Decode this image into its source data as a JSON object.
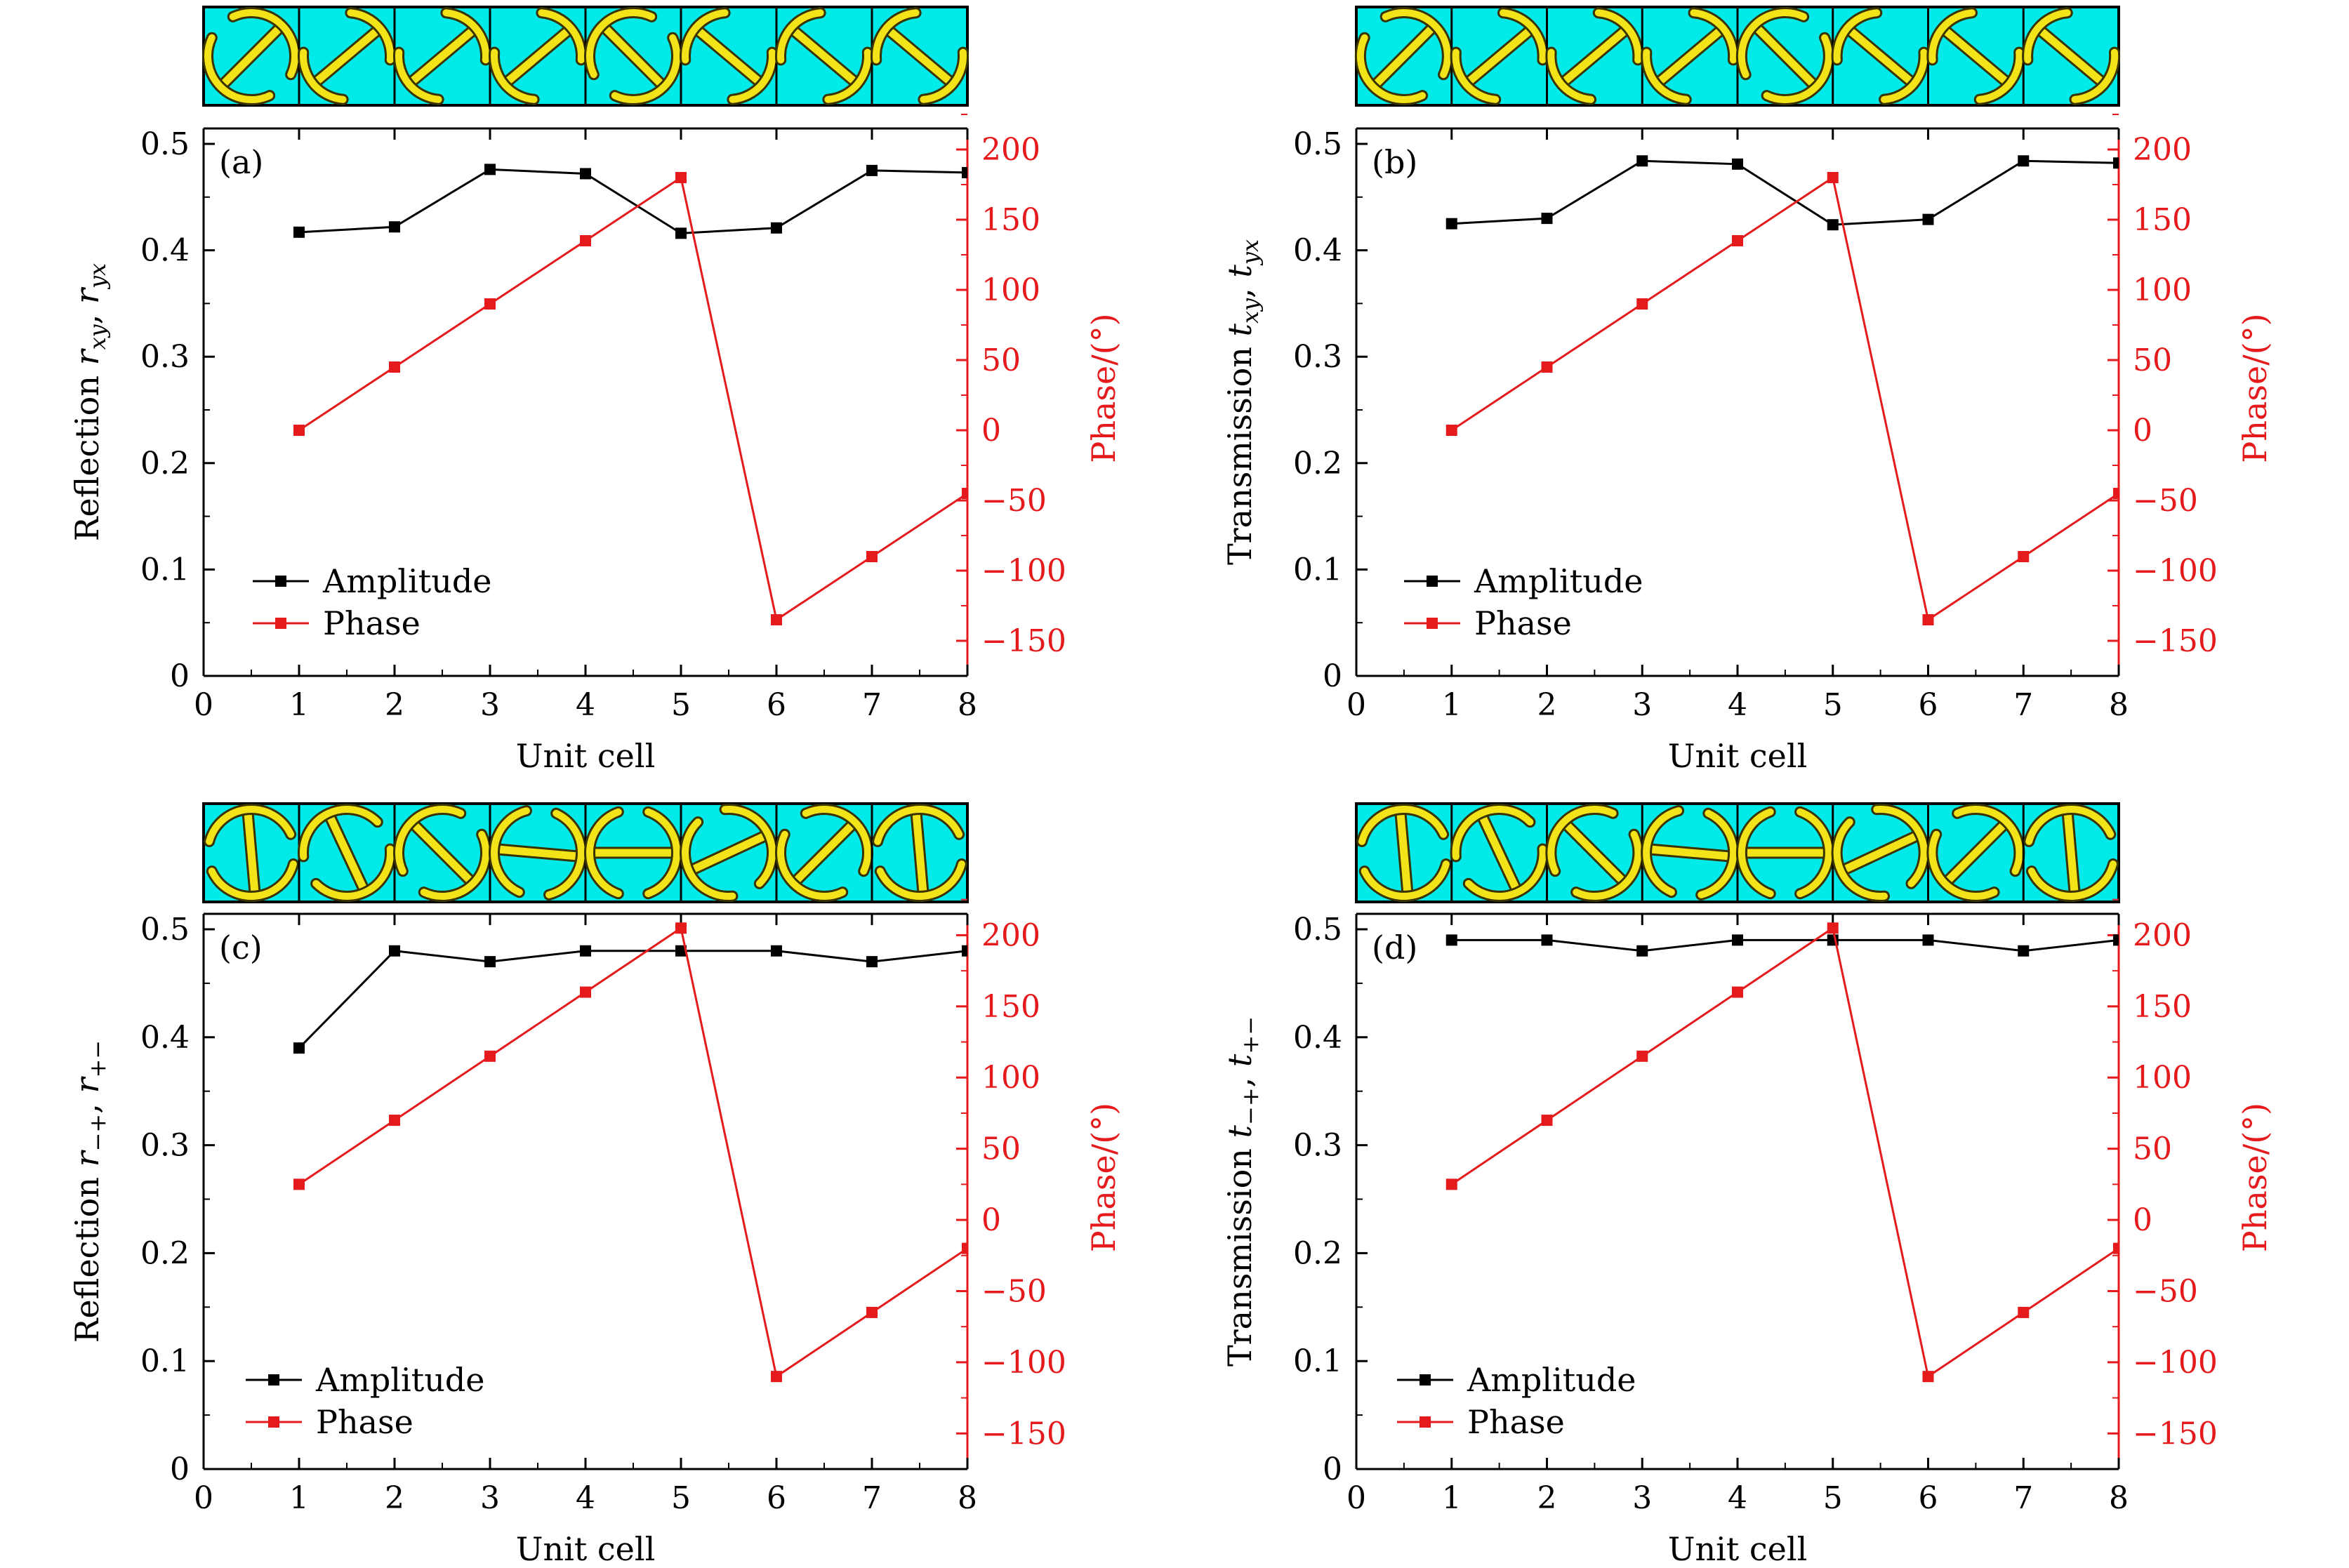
{
  "colors": {
    "amplitude": "#000000",
    "phase": "#e41a1c",
    "phase_axis": "#e41a1c",
    "cell_bg": "#00eaea",
    "meta_fill": "#f2e418",
    "meta_edge": "#3a3300"
  },
  "chart_data": [
    {
      "type": "line",
      "panel": "(a)",
      "xlabel": "Unit cell",
      "ylabel_prefix": "Reflection ",
      "ylabel_sym": "r",
      "ylabel_sub1": "xy",
      "ylabel_sep": ", ",
      "ylabel_sub2": "yx",
      "y2label": "Phase/(°)",
      "xlim": [
        0,
        8
      ],
      "ylim": [
        0,
        0.5
      ],
      "y2lim": [
        -175,
        215
      ],
      "xticks": [
        "0",
        "1",
        "2",
        "3",
        "4",
        "5",
        "6",
        "7",
        "8"
      ],
      "yticks": [
        "0",
        "0.1",
        "0.2",
        "0.3",
        "0.4",
        "0.5"
      ],
      "y2ticks": [
        "−150",
        "−100",
        "−50",
        "0",
        "50",
        "100",
        "150",
        "200"
      ],
      "legend": [
        "Amplitude",
        "Phase"
      ],
      "x": [
        1,
        2,
        3,
        4,
        5,
        6,
        7,
        8
      ],
      "series": [
        {
          "name": "Amplitude",
          "axis": "left",
          "values": [
            0.417,
            0.422,
            0.476,
            0.472,
            0.416,
            0.421,
            0.475,
            0.473
          ]
        },
        {
          "name": "Phase",
          "axis": "right",
          "values": [
            0,
            45,
            90,
            135,
            180,
            -135,
            -90,
            -45
          ]
        }
      ],
      "cells": {
        "style": "arc",
        "angles": [
          45,
          40,
          40,
          40,
          135,
          140,
          140,
          140
        ],
        "arcs": [
          1,
          0,
          0,
          0,
          1,
          0,
          0,
          0
        ]
      }
    },
    {
      "type": "line",
      "panel": "(b)",
      "xlabel": "Unit cell",
      "ylabel_prefix": "Transmission ",
      "ylabel_sym": "t",
      "ylabel_sub1": "xy",
      "ylabel_sep": ", ",
      "ylabel_sub2": "yx",
      "y2label": "Phase/(°)",
      "xlim": [
        0,
        8
      ],
      "ylim": [
        0,
        0.5
      ],
      "y2lim": [
        -175,
        215
      ],
      "xticks": [
        "0",
        "1",
        "2",
        "3",
        "4",
        "5",
        "6",
        "7",
        "8"
      ],
      "yticks": [
        "0",
        "0.1",
        "0.2",
        "0.3",
        "0.4",
        "0.5"
      ],
      "y2ticks": [
        "−150",
        "−100",
        "−50",
        "0",
        "50",
        "100",
        "150",
        "200"
      ],
      "legend": [
        "Amplitude",
        "Phase"
      ],
      "x": [
        1,
        2,
        3,
        4,
        5,
        6,
        7,
        8
      ],
      "series": [
        {
          "name": "Amplitude",
          "axis": "left",
          "values": [
            0.425,
            0.43,
            0.484,
            0.481,
            0.424,
            0.429,
            0.484,
            0.482
          ]
        },
        {
          "name": "Phase",
          "axis": "right",
          "values": [
            0,
            45,
            90,
            135,
            180,
            -135,
            -90,
            -45
          ]
        }
      ],
      "cells": {
        "style": "arc",
        "angles": [
          45,
          40,
          40,
          40,
          135,
          140,
          140,
          140
        ],
        "arcs": [
          1,
          0,
          0,
          0,
          1,
          0,
          0,
          0
        ]
      }
    },
    {
      "type": "line",
      "panel": "(c)",
      "xlabel": "Unit cell",
      "ylabel_prefix": "Reflection ",
      "ylabel_sym": "r",
      "ylabel_sub1": "−+",
      "ylabel_sep": ", ",
      "ylabel_sub2": "+−",
      "y2label": "Phase/(°)",
      "xlim": [
        0,
        8
      ],
      "ylim": [
        0,
        0.5
      ],
      "y2lim": [
        -175,
        215
      ],
      "xticks": [
        "0",
        "1",
        "2",
        "3",
        "4",
        "5",
        "6",
        "7",
        "8"
      ],
      "yticks": [
        "0",
        "0.1",
        "0.2",
        "0.3",
        "0.4",
        "0.5"
      ],
      "y2ticks": [
        "−150",
        "−100",
        "−50",
        "0",
        "50",
        "100",
        "150",
        "200"
      ],
      "legend": [
        "Amplitude",
        "Phase"
      ],
      "x": [
        1,
        2,
        3,
        4,
        5,
        6,
        7,
        8
      ],
      "series": [
        {
          "name": "Amplitude",
          "axis": "left",
          "values": [
            0.39,
            0.48,
            0.47,
            0.48,
            0.48,
            0.48,
            0.47,
            0.48
          ]
        },
        {
          "name": "Phase",
          "axis": "right",
          "values": [
            25,
            70,
            115,
            160,
            205,
            -110,
            -65,
            -20
          ]
        }
      ],
      "cells": {
        "style": "circle",
        "angles": [
          95,
          115,
          135,
          175,
          180,
          205,
          225,
          95
        ]
      }
    },
    {
      "type": "line",
      "panel": "(d)",
      "xlabel": "Unit cell",
      "ylabel_prefix": "Transmission ",
      "ylabel_sym": "t",
      "ylabel_sub1": "−+",
      "ylabel_sep": ", ",
      "ylabel_sub2": "+−",
      "y2label": "Phase/(°)",
      "xlim": [
        0,
        8
      ],
      "ylim": [
        0,
        0.5
      ],
      "y2lim": [
        -175,
        215
      ],
      "xticks": [
        "0",
        "1",
        "2",
        "3",
        "4",
        "5",
        "6",
        "7",
        "8"
      ],
      "yticks": [
        "0",
        "0.1",
        "0.2",
        "0.3",
        "0.4",
        "0.5"
      ],
      "y2ticks": [
        "−150",
        "−100",
        "−50",
        "0",
        "50",
        "100",
        "150",
        "200"
      ],
      "legend": [
        "Amplitude",
        "Phase"
      ],
      "x": [
        1,
        2,
        3,
        4,
        5,
        6,
        7,
        8
      ],
      "series": [
        {
          "name": "Amplitude",
          "axis": "left",
          "values": [
            0.49,
            0.49,
            0.48,
            0.49,
            0.49,
            0.49,
            0.48,
            0.49
          ]
        },
        {
          "name": "Phase",
          "axis": "right",
          "values": [
            25,
            70,
            115,
            160,
            205,
            -110,
            -65,
            -20
          ]
        }
      ],
      "cells": {
        "style": "circle",
        "angles": [
          95,
          115,
          135,
          175,
          180,
          205,
          225,
          95
        ]
      }
    }
  ]
}
